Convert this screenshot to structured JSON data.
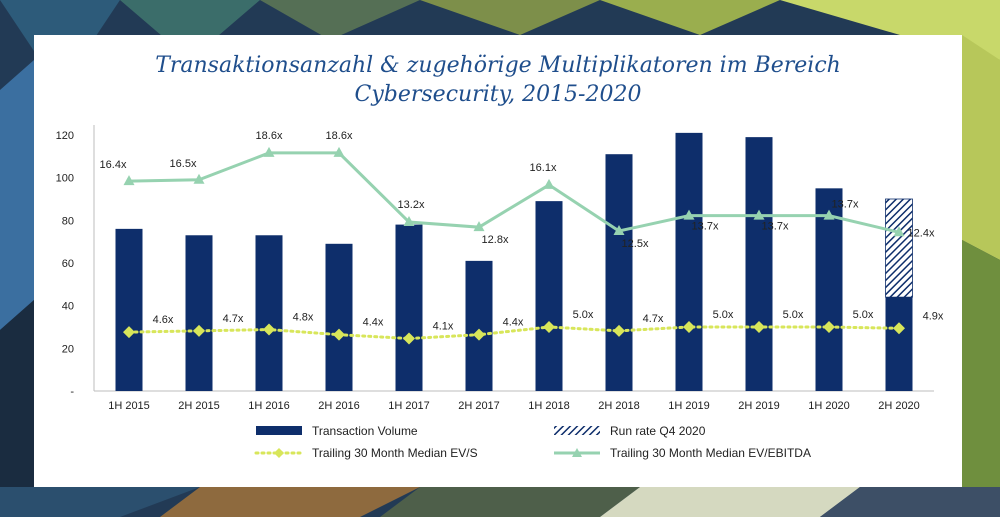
{
  "chart_data": {
    "type": "bar",
    "title_line1": "Transaktionsanzahl & zugehörige Multiplikatoren im Bereich",
    "title_line2": "Cybersecurity, 2015-2020",
    "categories": [
      "1H 2015",
      "2H 2015",
      "1H 2016",
      "2H 2016",
      "1H 2017",
      "2H 2017",
      "1H 2018",
      "2H 2018",
      "1H 2019",
      "2H 2019",
      "1H 2020",
      "2H 2020"
    ],
    "ylim": [
      0,
      120
    ],
    "yticks": [
      0,
      20,
      40,
      60,
      80,
      100,
      120
    ],
    "ytick_labels": [
      "-",
      "20",
      "40",
      "60",
      "80",
      "100",
      "120"
    ],
    "grid": false,
    "legend_position": "bottom",
    "series": [
      {
        "name": "Transaction Volume",
        "kind": "bar",
        "color": "#0e2e6b",
        "values": [
          76,
          73,
          73,
          69,
          78,
          61,
          89,
          111,
          121,
          119,
          95,
          44
        ]
      },
      {
        "name": "Run rate Q4 2020",
        "kind": "bar-hatched",
        "color": "#0e2e6b",
        "values": [
          null,
          null,
          null,
          null,
          null,
          null,
          null,
          null,
          null,
          null,
          null,
          46
        ]
      },
      {
        "name": "Trailing 30 Month Median EV/S",
        "kind": "line-dotted",
        "color": "#d8e65a",
        "values": [
          4.6,
          4.7,
          4.8,
          4.4,
          4.1,
          4.4,
          5.0,
          4.7,
          5.0,
          5.0,
          5.0,
          4.9
        ],
        "labels": [
          "4.6x",
          "4.7x",
          "4.8x",
          "4.4x",
          "4.1x",
          "4.4x",
          "5.0x",
          "4.7x",
          "5.0x",
          "5.0x",
          "5.0x",
          "4.9x"
        ]
      },
      {
        "name": "Trailing 30 Month Median EV/EBITDA",
        "kind": "line",
        "color": "#96d2b0",
        "values": [
          16.4,
          16.5,
          18.6,
          18.6,
          13.2,
          12.8,
          16.1,
          12.5,
          13.7,
          13.7,
          13.7,
          12.4
        ],
        "labels": [
          "16.4x",
          "16.5x",
          "18.6x",
          "18.6x",
          "13.2x",
          "12.8x",
          "16.1x",
          "12.5x",
          "13.7x",
          "13.7x",
          "13.7x",
          "12.4x"
        ]
      }
    ]
  }
}
